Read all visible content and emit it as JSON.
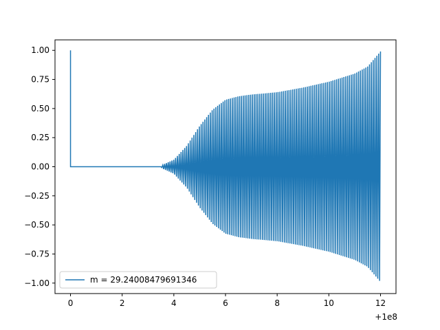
{
  "chart_data": {
    "type": "line",
    "title": "",
    "xlabel": "",
    "ylabel": "",
    "x_offset_label": "+1e8",
    "xlim": [
      -0.6,
      12.6
    ],
    "ylim": [
      -1.09,
      1.09
    ],
    "xticks": [
      0,
      2,
      4,
      6,
      8,
      10,
      12
    ],
    "xtick_labels": [
      "0",
      "2",
      "4",
      "6",
      "8",
      "10",
      "12"
    ],
    "yticks": [
      1.0,
      0.75,
      0.5,
      0.25,
      0.0,
      -0.25,
      -0.5,
      -0.75,
      -1.0
    ],
    "ytick_labels": [
      "1.00",
      "0.75",
      "0.50",
      "0.25",
      "0.00",
      "−0.25",
      "−0.50",
      "−0.75",
      "−1.00"
    ],
    "grid": false,
    "legend": {
      "placement": "lower-left"
    },
    "colors": {
      "series": "#1f77b4"
    },
    "series": [
      {
        "name": "m = 29.24008479691346",
        "oscillation_cycles": 120,
        "envelope": [
          {
            "x": 0.0,
            "y": 0.0
          },
          {
            "x": 3.5,
            "y": 0.0
          },
          {
            "x": 3.6,
            "y": 0.02
          },
          {
            "x": 4.0,
            "y": 0.06
          },
          {
            "x": 4.5,
            "y": 0.18
          },
          {
            "x": 5.0,
            "y": 0.35
          },
          {
            "x": 5.5,
            "y": 0.49
          },
          {
            "x": 6.0,
            "y": 0.575
          },
          {
            "x": 6.5,
            "y": 0.605
          },
          {
            "x": 7.0,
            "y": 0.62
          },
          {
            "x": 8.0,
            "y": 0.64
          },
          {
            "x": 9.0,
            "y": 0.68
          },
          {
            "x": 10.0,
            "y": 0.73
          },
          {
            "x": 11.0,
            "y": 0.8
          },
          {
            "x": 11.5,
            "y": 0.86
          },
          {
            "x": 12.0,
            "y": 0.99
          }
        ],
        "points": [
          {
            "x": 0.0,
            "y": 1.0
          },
          {
            "x": 0.0,
            "y": 0.0
          },
          {
            "x": 3.5,
            "y": 0.0
          }
        ]
      }
    ]
  }
}
